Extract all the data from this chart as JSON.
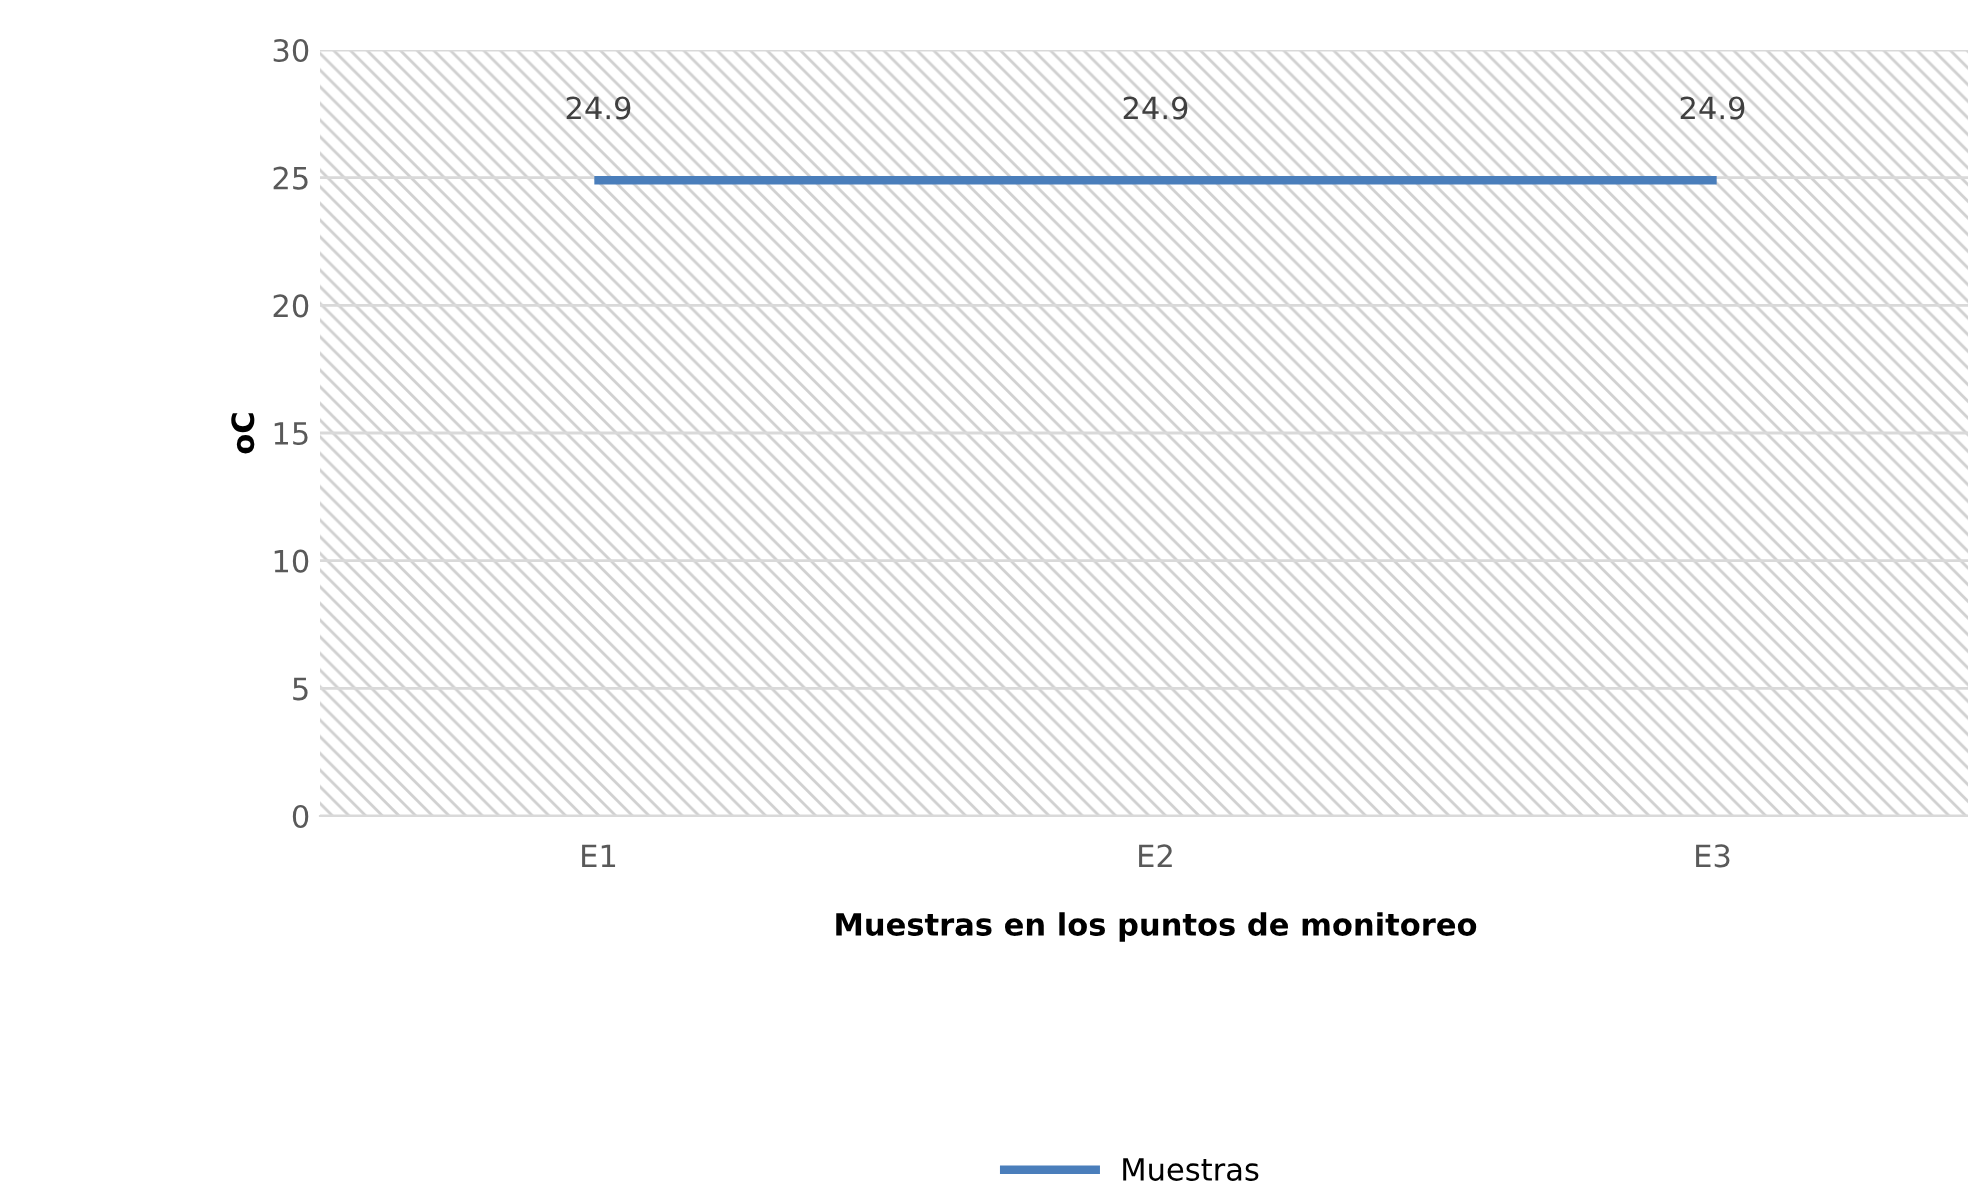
{
  "chart_data": {
    "type": "line",
    "xlabel": "Muestras en los puntos de monitoreo",
    "ylabel": "oC",
    "categories": [
      "E1",
      "E2",
      "E3"
    ],
    "series": [
      {
        "name": "Muestras",
        "color": "#4a7ebb",
        "values": [
          24.9,
          24.9,
          24.9
        ]
      }
    ],
    "ylim": [
      0,
      30
    ],
    "yticks": [
      0,
      5,
      10,
      15,
      20,
      25,
      30
    ],
    "grid": "y",
    "legend": "bottom",
    "data_labels": true,
    "marker": "none",
    "line_style": "solid"
  }
}
